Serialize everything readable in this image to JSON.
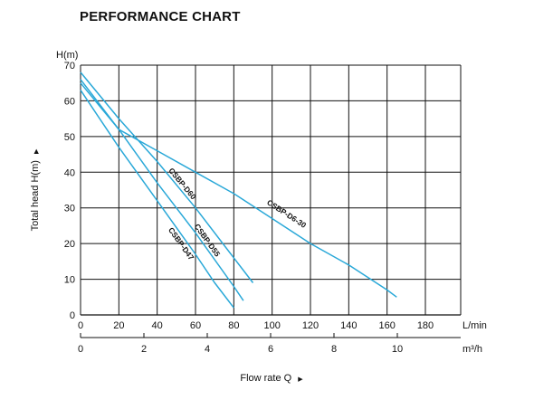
{
  "chart_data": {
    "type": "line",
    "title": "PERFORMANCE CHART",
    "xlabel": "Flow rate  Q",
    "ylabel": "Total  head H(m)",
    "y_unit": "H(m)",
    "x_unit": "L/min",
    "x2_unit": "m³/h",
    "xlim": [
      0,
      200
    ],
    "ylim": [
      0,
      70
    ],
    "x_ticks": [
      0,
      20,
      40,
      60,
      80,
      100,
      120,
      140,
      160,
      180
    ],
    "y_ticks": [
      0,
      10,
      20,
      30,
      40,
      50,
      60,
      70
    ],
    "x2_ticks": [
      0,
      2,
      4,
      6,
      8,
      10
    ],
    "grid": true,
    "arrow_glyph": "▶",
    "series": [
      {
        "name": "CSBP-D47",
        "x": [
          0,
          20,
          40,
          60,
          70,
          80
        ],
        "y": [
          63,
          47,
          32,
          17,
          9,
          2
        ]
      },
      {
        "name": "CSBP-D55",
        "x": [
          0,
          20,
          40,
          60,
          80,
          85
        ],
        "y": [
          66,
          52,
          37,
          23,
          8,
          4
        ]
      },
      {
        "name": "CSBP-D60",
        "x": [
          0,
          20,
          40,
          60,
          80,
          90
        ],
        "y": [
          68,
          55,
          43,
          30,
          16,
          9
        ]
      },
      {
        "name": "CSBP-D6-30",
        "x": [
          0,
          20,
          40,
          60,
          80,
          100,
          120,
          140,
          160,
          165
        ],
        "y": [
          65,
          52,
          46,
          40,
          34,
          27,
          20,
          14,
          7,
          5
        ]
      }
    ]
  },
  "style": {
    "curve_color": "#29a8d8",
    "grid_color": "#111111"
  }
}
